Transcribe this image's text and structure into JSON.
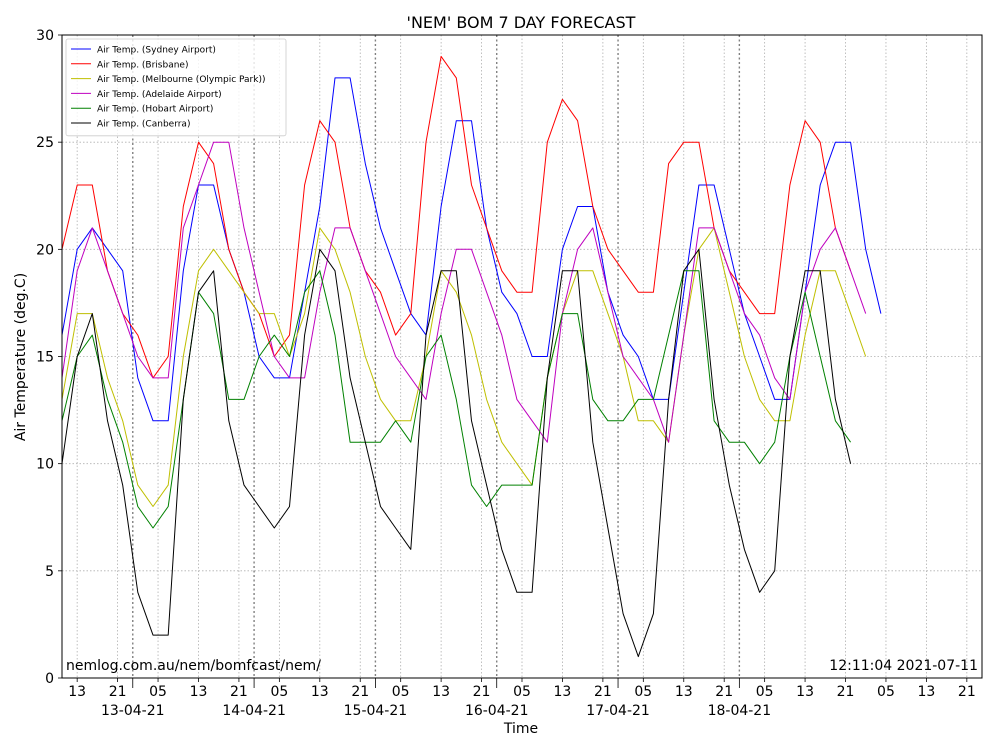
{
  "chart_data": {
    "type": "line",
    "title": "'NEM' BOM 7 DAY FORECAST",
    "xlabel": "Time",
    "ylabel": "Air Temperature (deg.C)",
    "ylim": [
      0,
      30
    ],
    "yticks": [
      0,
      5,
      10,
      15,
      20,
      25,
      30
    ],
    "grid": true,
    "legend_position": "top-left",
    "x_start_label": "2021-04-12 10:00",
    "x_step_hours": 3,
    "x_range_hours": [
      0,
      165
    ],
    "hour_ticks": [
      {
        "hours": 3,
        "label": "13"
      },
      {
        "hours": 11,
        "label": "21"
      },
      {
        "hours": 19,
        "label": "05"
      },
      {
        "hours": 27,
        "label": "13"
      },
      {
        "hours": 35,
        "label": "21"
      },
      {
        "hours": 43,
        "label": "05"
      },
      {
        "hours": 51,
        "label": "13"
      },
      {
        "hours": 59,
        "label": "21"
      },
      {
        "hours": 67,
        "label": "05"
      },
      {
        "hours": 75,
        "label": "13"
      },
      {
        "hours": 83,
        "label": "21"
      },
      {
        "hours": 91,
        "label": "05"
      },
      {
        "hours": 99,
        "label": "13"
      },
      {
        "hours": 107,
        "label": "21"
      },
      {
        "hours": 115,
        "label": "05"
      },
      {
        "hours": 123,
        "label": "13"
      },
      {
        "hours": 131,
        "label": "21"
      },
      {
        "hours": 139,
        "label": "05"
      },
      {
        "hours": 147,
        "label": "13"
      },
      {
        "hours": 155,
        "label": "21"
      },
      {
        "hours": 163,
        "label": "05"
      },
      {
        "hours": 171,
        "label": "13"
      },
      {
        "hours": 179,
        "label": "21"
      }
    ],
    "day_ticks": [
      {
        "hours": 14,
        "label": "13-04-21"
      },
      {
        "hours": 38,
        "label": "14-04-21"
      },
      {
        "hours": 62,
        "label": "15-04-21"
      },
      {
        "hours": 86,
        "label": "16-04-21"
      },
      {
        "hours": 110,
        "label": "17-04-21"
      },
      {
        "hours": 134,
        "label": "18-04-21"
      }
    ],
    "series": [
      {
        "name": "Air Temp. (Sydney Airport)",
        "color": "#0000ff",
        "values": [
          16,
          20,
          21,
          20,
          19,
          14,
          12,
          12,
          19,
          23,
          23,
          20,
          18,
          15,
          14,
          14,
          18,
          22,
          28,
          28,
          24,
          21,
          19,
          17,
          16,
          22,
          26,
          26,
          21,
          18,
          17,
          15,
          15,
          20,
          22,
          22,
          18,
          16,
          15,
          13,
          13,
          18,
          23,
          23,
          20,
          17,
          15,
          13,
          13,
          18,
          23,
          25,
          25,
          20,
          17
        ]
      },
      {
        "name": "Air Temp. (Brisbane)",
        "color": "#ff0000",
        "values": [
          20,
          23,
          23,
          19,
          17,
          16,
          14,
          15,
          22,
          25,
          24,
          20,
          18,
          17,
          15,
          16,
          23,
          26,
          25,
          21,
          19,
          18,
          16,
          17,
          25,
          29,
          28,
          23,
          21,
          19,
          18,
          18,
          25,
          27,
          26,
          22,
          20,
          19,
          18,
          18,
          24,
          25,
          25,
          21,
          19,
          18,
          17,
          17,
          23,
          26,
          25,
          21,
          19
        ]
      },
      {
        "name": "Air Temp. (Melbourne (Olympic Park))",
        "color": "#bfbf00",
        "values": [
          13,
          17,
          17,
          14,
          12,
          9,
          8,
          9,
          15,
          19,
          20,
          19,
          18,
          17,
          17,
          15,
          17,
          21,
          20,
          18,
          15,
          13,
          12,
          12,
          15,
          19,
          18,
          16,
          13,
          11,
          10,
          9,
          14,
          17,
          19,
          19,
          17,
          15,
          12,
          12,
          11,
          16,
          20,
          21,
          18,
          15,
          13,
          12,
          12,
          16,
          19,
          19,
          17,
          15
        ]
      },
      {
        "name": "Air Temp. (Adelaide Airport)",
        "color": "#bf00bf",
        "values": [
          14,
          19,
          21,
          19,
          17,
          15,
          14,
          14,
          21,
          23,
          25,
          25,
          21,
          18,
          15,
          14,
          14,
          18,
          21,
          21,
          19,
          17,
          15,
          14,
          13,
          17,
          20,
          20,
          18,
          16,
          13,
          12,
          11,
          17,
          20,
          21,
          18,
          15,
          14,
          13,
          11,
          16,
          21,
          21,
          19,
          17,
          16,
          14,
          13,
          18,
          20,
          21,
          19,
          17
        ]
      },
      {
        "name": "Air Temp. (Hobart Airport)",
        "color": "#008000",
        "values": [
          12,
          15,
          16,
          13,
          11,
          8,
          7,
          8,
          13,
          18,
          17,
          13,
          13,
          15,
          16,
          15,
          18,
          19,
          16,
          11,
          11,
          11,
          12,
          11,
          15,
          16,
          13,
          9,
          8,
          9,
          9,
          9,
          14,
          17,
          17,
          13,
          12,
          12,
          13,
          13,
          16,
          19,
          19,
          12,
          11,
          11,
          10,
          11,
          15,
          18,
          15,
          12,
          11
        ]
      },
      {
        "name": "Air Temp. (Canberra)",
        "color": "#000000",
        "values": [
          10,
          15,
          17,
          12,
          9,
          4,
          2,
          2,
          13,
          18,
          19,
          12,
          9,
          8,
          7,
          8,
          16,
          20,
          19,
          14,
          11,
          8,
          7,
          6,
          16,
          19,
          19,
          12,
          9,
          6,
          4,
          4,
          14,
          19,
          19,
          11,
          7,
          3,
          1,
          3,
          13,
          19,
          20,
          13,
          9,
          6,
          4,
          5,
          15,
          19,
          19,
          13,
          10
        ]
      }
    ],
    "annotations": {
      "bottom_left": "nemlog.com.au/nem/bomfcast/nem/",
      "bottom_right": "12:11:04 2021-07-11"
    }
  }
}
